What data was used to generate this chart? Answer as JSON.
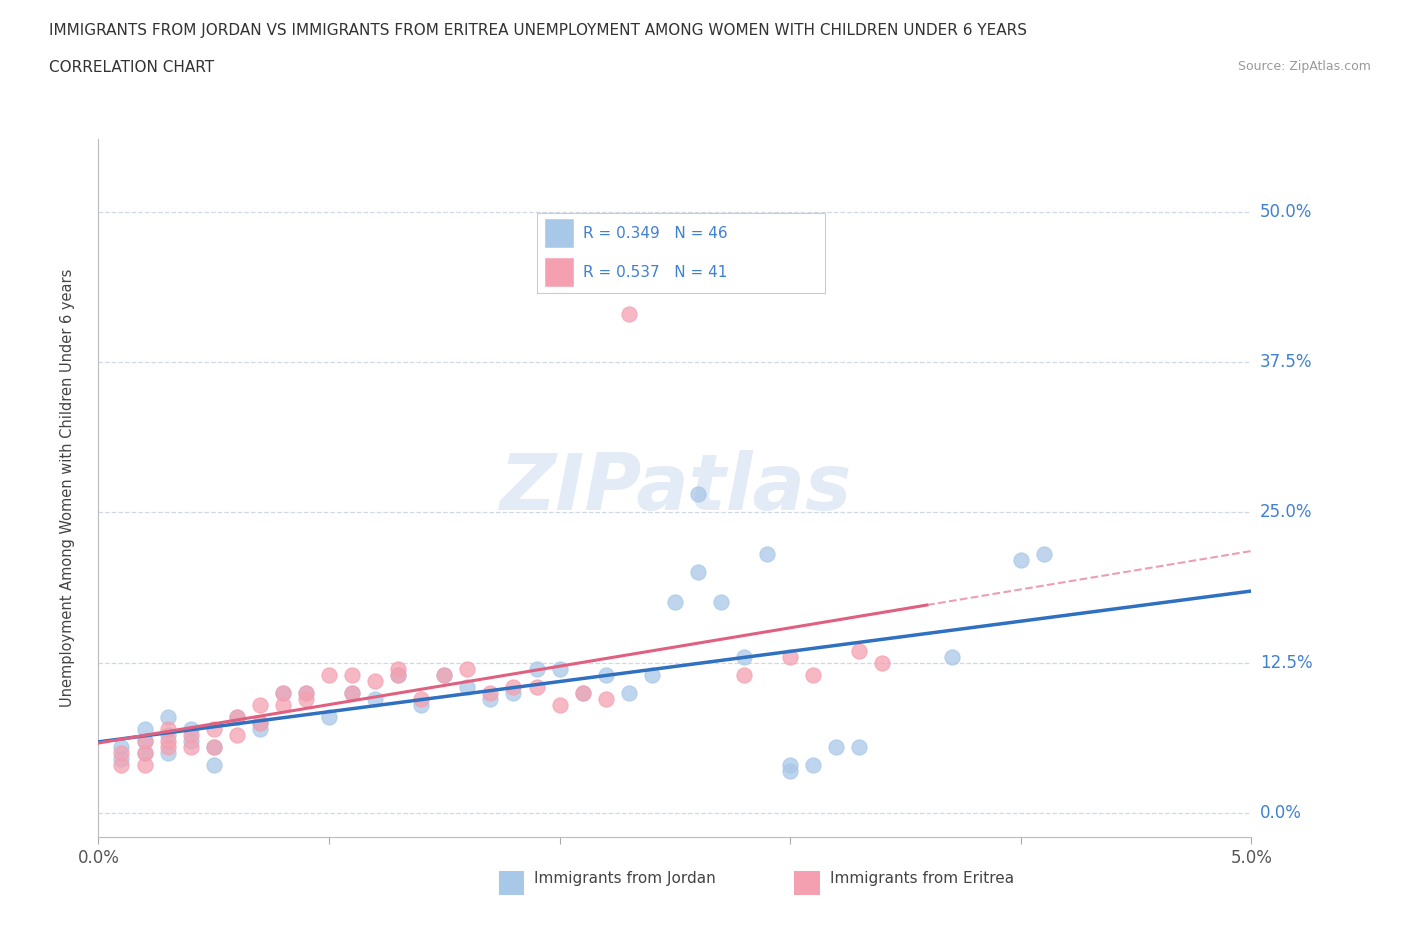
{
  "title_line1": "IMMIGRANTS FROM JORDAN VS IMMIGRANTS FROM ERITREA UNEMPLOYMENT AMONG WOMEN WITH CHILDREN UNDER 6 YEARS",
  "title_line2": "CORRELATION CHART",
  "source": "Source: ZipAtlas.com",
  "ylabel": "Unemployment Among Women with Children Under 6 years",
  "xlim": [
    0.0,
    0.05
  ],
  "ylim": [
    -0.02,
    0.56
  ],
  "yticks": [
    0.0,
    0.125,
    0.25,
    0.375,
    0.5
  ],
  "ytick_labels": [
    "0.0%",
    "12.5%",
    "25.0%",
    "37.5%",
    "50.0%"
  ],
  "xticks": [
    0.0,
    0.01,
    0.02,
    0.03,
    0.04,
    0.05
  ],
  "xtick_labels": [
    "0.0%",
    "",
    "",
    "",
    "",
    "5.0%"
  ],
  "legend_R_jordan": "R = 0.349",
  "legend_N_jordan": "N = 46",
  "legend_R_eritrea": "R = 0.537",
  "legend_N_eritrea": "N = 41",
  "jordan_color": "#a8c8e8",
  "eritrea_color": "#f4a0b0",
  "jordan_line_color": "#3070c0",
  "eritrea_line_color": "#e06080",
  "tick_color": "#4080d0",
  "jordan_scatter": [
    [
      0.001,
      0.045
    ],
    [
      0.001,
      0.055
    ],
    [
      0.002,
      0.06
    ],
    [
      0.002,
      0.07
    ],
    [
      0.002,
      0.05
    ],
    [
      0.003,
      0.065
    ],
    [
      0.003,
      0.08
    ],
    [
      0.003,
      0.05
    ],
    [
      0.004,
      0.07
    ],
    [
      0.004,
      0.06
    ],
    [
      0.005,
      0.055
    ],
    [
      0.005,
      0.04
    ],
    [
      0.006,
      0.08
    ],
    [
      0.007,
      0.075
    ],
    [
      0.007,
      0.07
    ],
    [
      0.008,
      0.1
    ],
    [
      0.009,
      0.1
    ],
    [
      0.01,
      0.08
    ],
    [
      0.011,
      0.1
    ],
    [
      0.012,
      0.095
    ],
    [
      0.013,
      0.115
    ],
    [
      0.014,
      0.09
    ],
    [
      0.015,
      0.115
    ],
    [
      0.016,
      0.105
    ],
    [
      0.017,
      0.095
    ],
    [
      0.018,
      0.1
    ],
    [
      0.019,
      0.12
    ],
    [
      0.02,
      0.12
    ],
    [
      0.021,
      0.1
    ],
    [
      0.022,
      0.115
    ],
    [
      0.023,
      0.1
    ],
    [
      0.024,
      0.115
    ],
    [
      0.025,
      0.175
    ],
    [
      0.026,
      0.2
    ],
    [
      0.026,
      0.265
    ],
    [
      0.027,
      0.175
    ],
    [
      0.028,
      0.13
    ],
    [
      0.029,
      0.215
    ],
    [
      0.03,
      0.04
    ],
    [
      0.03,
      0.035
    ],
    [
      0.031,
      0.04
    ],
    [
      0.032,
      0.055
    ],
    [
      0.033,
      0.055
    ],
    [
      0.037,
      0.13
    ],
    [
      0.04,
      0.21
    ],
    [
      0.041,
      0.215
    ]
  ],
  "eritrea_scatter": [
    [
      0.001,
      0.04
    ],
    [
      0.001,
      0.05
    ],
    [
      0.002,
      0.04
    ],
    [
      0.002,
      0.05
    ],
    [
      0.002,
      0.06
    ],
    [
      0.003,
      0.055
    ],
    [
      0.003,
      0.06
    ],
    [
      0.003,
      0.07
    ],
    [
      0.004,
      0.055
    ],
    [
      0.004,
      0.065
    ],
    [
      0.005,
      0.055
    ],
    [
      0.005,
      0.07
    ],
    [
      0.006,
      0.065
    ],
    [
      0.006,
      0.08
    ],
    [
      0.007,
      0.075
    ],
    [
      0.007,
      0.09
    ],
    [
      0.008,
      0.09
    ],
    [
      0.008,
      0.1
    ],
    [
      0.009,
      0.1
    ],
    [
      0.009,
      0.095
    ],
    [
      0.01,
      0.115
    ],
    [
      0.011,
      0.1
    ],
    [
      0.011,
      0.115
    ],
    [
      0.012,
      0.11
    ],
    [
      0.013,
      0.12
    ],
    [
      0.013,
      0.115
    ],
    [
      0.014,
      0.095
    ],
    [
      0.015,
      0.115
    ],
    [
      0.016,
      0.12
    ],
    [
      0.017,
      0.1
    ],
    [
      0.018,
      0.105
    ],
    [
      0.019,
      0.105
    ],
    [
      0.02,
      0.09
    ],
    [
      0.021,
      0.1
    ],
    [
      0.022,
      0.095
    ],
    [
      0.028,
      0.115
    ],
    [
      0.03,
      0.13
    ],
    [
      0.031,
      0.115
    ],
    [
      0.033,
      0.135
    ],
    [
      0.034,
      0.125
    ],
    [
      0.023,
      0.415
    ]
  ],
  "watermark_text": "ZIPatlas",
  "background_color": "#ffffff",
  "grid_color": "#d0d8e8"
}
